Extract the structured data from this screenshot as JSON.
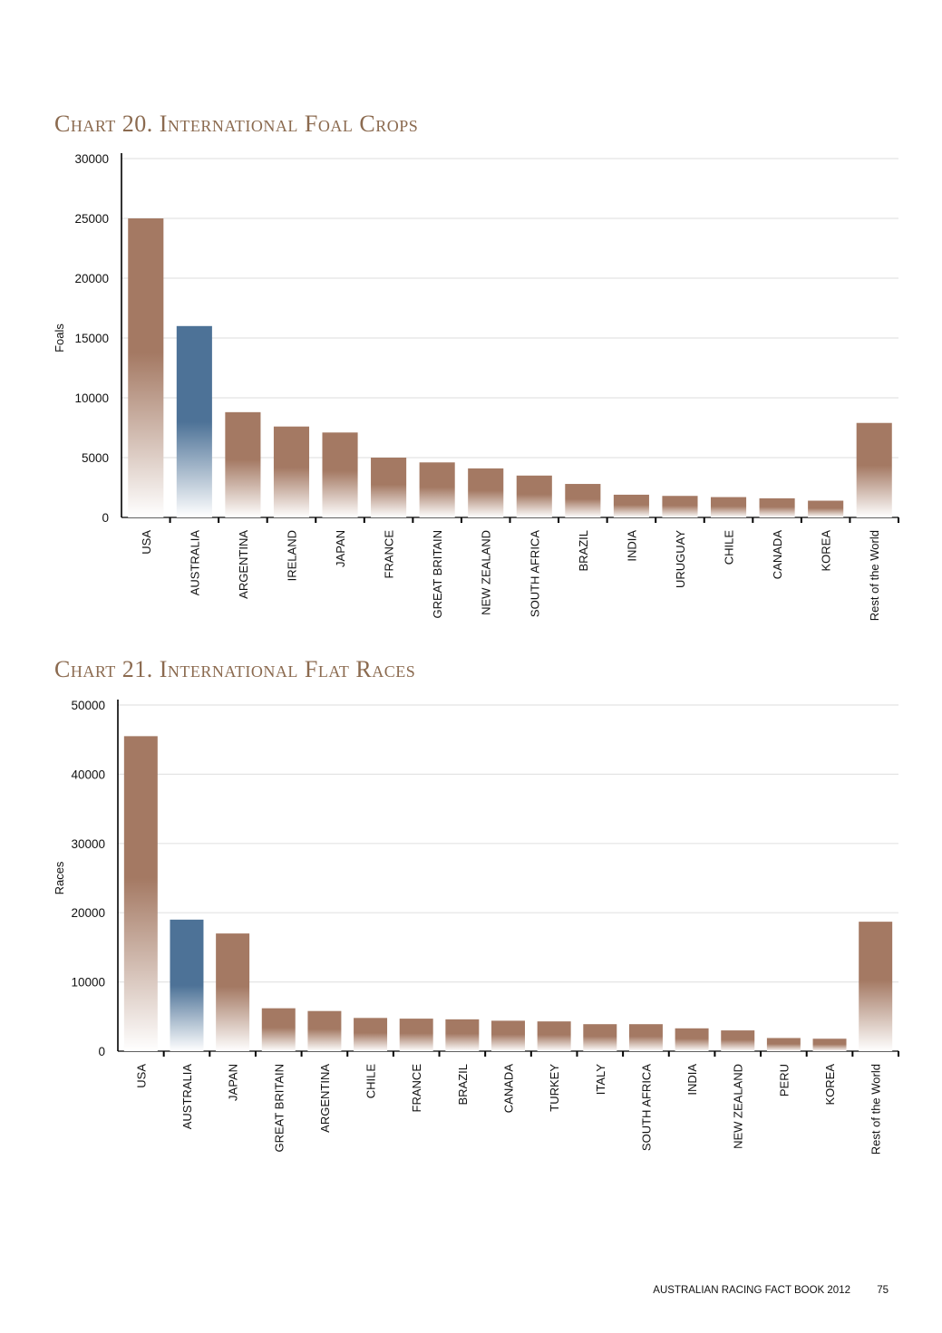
{
  "chart_data": [
    {
      "type": "bar",
      "title": "Chart 20. International Foal Crops",
      "ylabel": "Foals",
      "ylim": [
        0,
        30000
      ],
      "yticks": [
        0,
        5000,
        10000,
        15000,
        20000,
        25000,
        30000
      ],
      "grid": true,
      "highlight_category": "AUSTRALIA",
      "colors": {
        "bar": "#a47963",
        "highlight": "#4d7297"
      },
      "categories": [
        "USA",
        "AUSTRALIA",
        "ARGENTINA",
        "IRELAND",
        "JAPAN",
        "FRANCE",
        "GREAT BRITAIN",
        "NEW ZEALAND",
        "SOUTH AFRICA",
        "BRAZIL",
        "INDIA",
        "URUGUAY",
        "CHILE",
        "CANADA",
        "KOREA",
        "Rest of the World"
      ],
      "values": [
        25000,
        16000,
        8800,
        7600,
        7100,
        5000,
        4600,
        4100,
        3500,
        2800,
        1900,
        1800,
        1700,
        1600,
        1400,
        7900
      ]
    },
    {
      "type": "bar",
      "title": "Chart 21. International Flat Races",
      "ylabel": "Races",
      "ylim": [
        0,
        50000
      ],
      "yticks": [
        0,
        10000,
        20000,
        30000,
        40000,
        50000
      ],
      "grid": true,
      "highlight_category": "AUSTRALIA",
      "colors": {
        "bar": "#a47963",
        "highlight": "#4d7297"
      },
      "categories": [
        "USA",
        "AUSTRALIA",
        "JAPAN",
        "GREAT BRITAIN",
        "ARGENTINA",
        "CHILE",
        "FRANCE",
        "BRAZIL",
        "CANADA",
        "TURKEY",
        "ITALY",
        "SOUTH AFRICA",
        "INDIA",
        "NEW ZEALAND",
        "PERU",
        "KOREA",
        "Rest of the World"
      ],
      "values": [
        45500,
        19000,
        17000,
        6200,
        5800,
        4800,
        4700,
        4600,
        4400,
        4300,
        3900,
        3900,
        3300,
        3000,
        1900,
        1800,
        18700
      ]
    }
  ],
  "footer": {
    "publication": "AUSTRALIAN RACING FACT BOOK 2012",
    "page_number": "75"
  }
}
